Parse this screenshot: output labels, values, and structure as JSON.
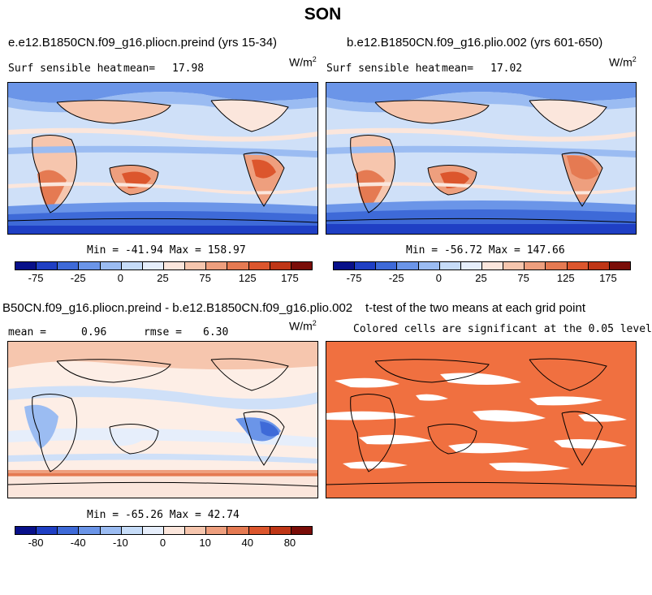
{
  "title": "SON",
  "panels": [
    {
      "id": "p1",
      "title": "e.e12.B1850CN.f09_g16.pliocn.preind (yrs 15-34)",
      "variable": "Surf sensible heat",
      "stat_label": "mean=",
      "stat_value": "17.98",
      "units": "W/m",
      "units_sup": "2",
      "minmax": "Min = -41.94 Max = 158.97",
      "colorbar_ticks": [
        "-75",
        "-25",
        "0",
        "25",
        "75",
        "125",
        "175"
      ]
    },
    {
      "id": "p2",
      "title": "b.e12.B1850CN.f09_g16.plio.002 (yrs 601-650)",
      "variable": "Surf sensible heat",
      "stat_label": "mean=",
      "stat_value": "17.02",
      "units": "W/m",
      "units_sup": "2",
      "minmax": "Min = -56.72 Max = 147.66",
      "colorbar_ticks": [
        "-75",
        "-25",
        "0",
        "25",
        "75",
        "125",
        "175"
      ]
    },
    {
      "id": "p3",
      "title": "B50CN.f09_g16.pliocn.preind - b.e12.B1850CN.f09_g16.plio.002",
      "stat_label": "mean =",
      "stat_value": "0.96",
      "rmse_label": "rmse =",
      "rmse_value": "6.30",
      "units": "W/m",
      "units_sup": "2",
      "minmax": "Min = -65.26 Max = 42.74",
      "colorbar_ticks": [
        "-80",
        "-40",
        "-10",
        "0",
        "10",
        "40",
        "80"
      ]
    },
    {
      "id": "p4",
      "title": "t-test of the two means at each grid point",
      "subtitle": "Colored cells are significant at the 0.05 level"
    }
  ],
  "colors": {
    "scale": [
      "#08108a",
      "#1f3fc4",
      "#3e6ad8",
      "#6b95e8",
      "#9bbcf2",
      "#c6dcf8",
      "#e6eefb",
      "#fbe6dc",
      "#f6c6ae",
      "#ee9f7e",
      "#e57a52",
      "#dc562d",
      "#bf3616",
      "#7a0d08"
    ],
    "significant": "#f07040",
    "ocean_base": "#cfe0f8",
    "diff_base": "#fdeee6"
  }
}
